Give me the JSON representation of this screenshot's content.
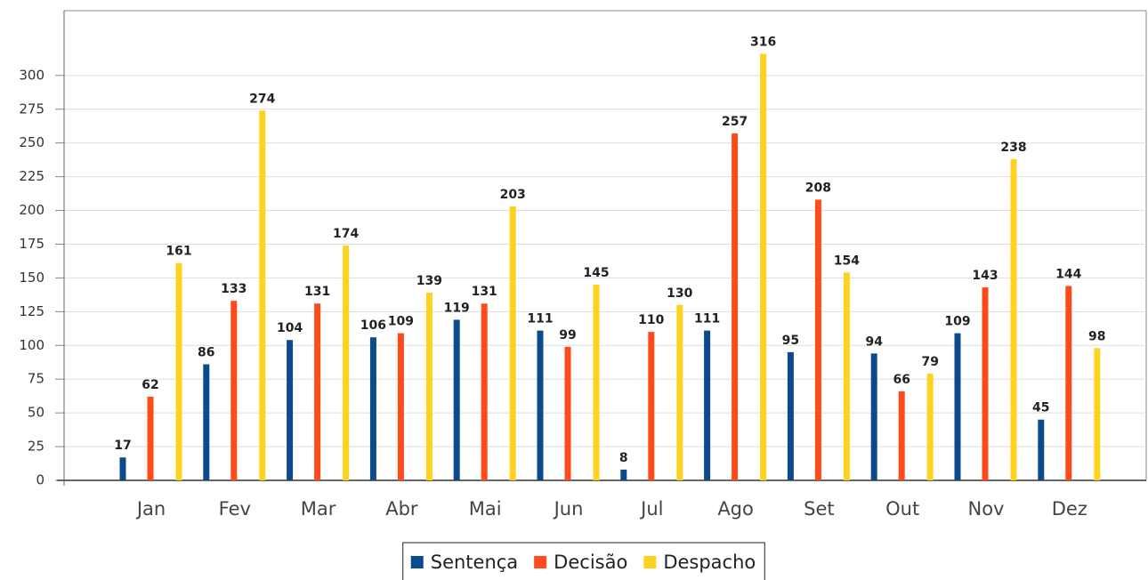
{
  "chart_data": {
    "type": "bar",
    "categories": [
      "Jan",
      "Fev",
      "Mar",
      "Abr",
      "Mai",
      "Jun",
      "Jul",
      "Ago",
      "Set",
      "Out",
      "Nov",
      "Dez"
    ],
    "series": [
      {
        "name": "Sentença",
        "color": "#0b4a8c",
        "values": [
          17,
          86,
          104,
          106,
          119,
          111,
          8,
          111,
          95,
          94,
          109,
          45
        ]
      },
      {
        "name": "Decisão",
        "color": "#ff4b1c",
        "values": [
          62,
          133,
          131,
          109,
          131,
          99,
          110,
          257,
          208,
          66,
          143,
          144
        ]
      },
      {
        "name": "Despacho",
        "color": "#ffd21f",
        "values": [
          161,
          274,
          174,
          139,
          203,
          145,
          130,
          316,
          154,
          79,
          238,
          98
        ]
      }
    ],
    "ylim": [
      0,
      348
    ],
    "yticks": [
      0,
      25,
      50,
      75,
      100,
      125,
      150,
      175,
      200,
      225,
      250,
      275,
      300
    ],
    "grid": true,
    "legend": "bottom"
  }
}
